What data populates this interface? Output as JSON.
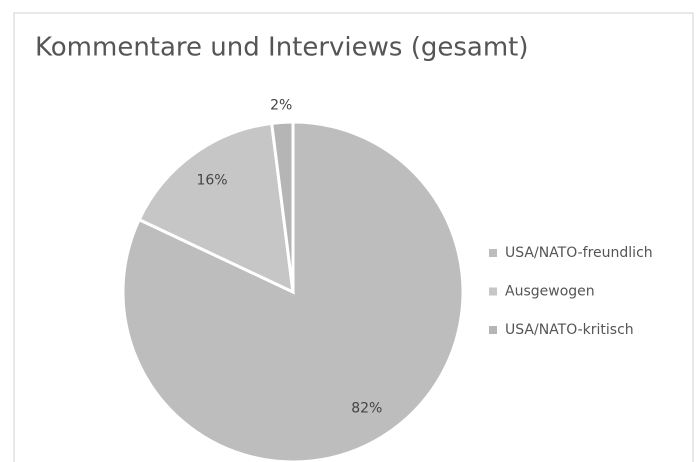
{
  "chart_data": {
    "type": "pie",
    "title": "Kommentare und Interviews (gesamt)",
    "categories": [
      "USA/NATO-freundlich",
      "Ausgewogen",
      "USA/NATO-kritisch"
    ],
    "values": [
      82,
      16,
      2
    ],
    "value_labels": [
      "82%",
      "16%",
      "2%"
    ],
    "colors": [
      "#bdbdbd",
      "#c6c6c6",
      "#b5b5b5"
    ],
    "legend": "right"
  }
}
